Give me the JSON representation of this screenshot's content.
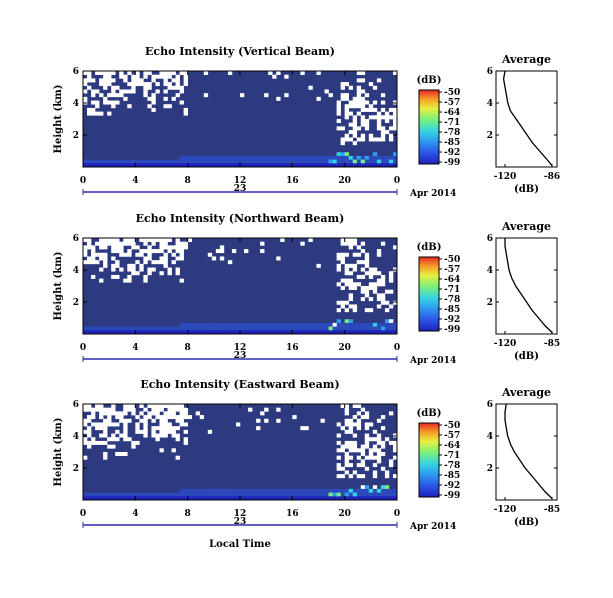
{
  "colors": {
    "background_echo": "#2e3a80",
    "no_data": "#ffffff",
    "colorbar": [
      "#1f22b8",
      "#2c55e8",
      "#2ea0f0",
      "#35d5e0",
      "#7af07a",
      "#e8f040",
      "#f59a25",
      "#e8262a"
    ]
  },
  "shared": {
    "x_ticks": [
      "0",
      "4",
      "8",
      "12",
      "16",
      "20",
      "0"
    ],
    "date_number": "23",
    "date_label": "Apr 2014",
    "ylabel": "Height (km)",
    "y_ticks": [
      "6",
      "4",
      "2"
    ],
    "cbar_unit": "(dB)",
    "cbar_ticks": [
      "-50",
      "-57",
      "-64",
      "-71",
      "-78",
      "-85",
      "-92",
      "-99"
    ],
    "avg_title": "Average",
    "avg_y_ticks": [
      "6",
      "4",
      "2"
    ],
    "avg_xlabel": "(dB)",
    "xlabel": "Local Time"
  },
  "chart_data": [
    {
      "type": "heatmap",
      "title": "Echo Intensity (Vertical Beam)",
      "xlabel": "",
      "ylabel": "Height (km)",
      "xlim": [
        0,
        24
      ],
      "ylim": [
        0,
        6
      ],
      "colorbar_range_db": [
        -99,
        -50
      ],
      "avg_x_ticks": [
        "-120",
        "-86"
      ],
      "average_profile": [
        [
          -86,
          0.1
        ],
        [
          -90,
          0.5
        ],
        [
          -95,
          1.0
        ],
        [
          -100,
          1.5
        ],
        [
          -104,
          2.0
        ],
        [
          -108,
          2.5
        ],
        [
          -112,
          3.0
        ],
        [
          -116,
          3.5
        ],
        [
          -118,
          4.0
        ],
        [
          -119,
          4.5
        ],
        [
          -120,
          5.0
        ],
        [
          -121,
          5.5
        ],
        [
          -120,
          6.0
        ]
      ]
    },
    {
      "type": "heatmap",
      "title": "Echo Intensity (Northward Beam)",
      "xlabel": "",
      "ylabel": "Height (km)",
      "xlim": [
        0,
        24
      ],
      "ylim": [
        0,
        6
      ],
      "colorbar_range_db": [
        -99,
        -50
      ],
      "avg_x_ticks": [
        "-120",
        "-85"
      ],
      "average_profile": [
        [
          -85,
          0.1
        ],
        [
          -90,
          0.5
        ],
        [
          -95,
          1.0
        ],
        [
          -100,
          1.5
        ],
        [
          -104,
          2.0
        ],
        [
          -108,
          2.5
        ],
        [
          -112,
          3.0
        ],
        [
          -115,
          3.5
        ],
        [
          -117,
          4.0
        ],
        [
          -118,
          4.5
        ],
        [
          -119,
          5.0
        ],
        [
          -120,
          5.5
        ],
        [
          -120,
          6.0
        ]
      ]
    },
    {
      "type": "heatmap",
      "title": "Echo Intensity (Eastward Beam)",
      "xlabel": "Local Time",
      "ylabel": "Height (km)",
      "xlim": [
        0,
        24
      ],
      "ylim": [
        0,
        6
      ],
      "colorbar_range_db": [
        -99,
        -50
      ],
      "avg_x_ticks": [
        "-120",
        "-85"
      ],
      "average_profile": [
        [
          -85,
          0.1
        ],
        [
          -90,
          0.5
        ],
        [
          -95,
          1.0
        ],
        [
          -100,
          1.5
        ],
        [
          -105,
          2.0
        ],
        [
          -109,
          2.5
        ],
        [
          -113,
          3.0
        ],
        [
          -116,
          3.5
        ],
        [
          -118,
          4.0
        ],
        [
          -119,
          4.5
        ],
        [
          -120,
          5.0
        ],
        [
          -120,
          5.5
        ],
        [
          -119,
          6.0
        ]
      ]
    }
  ]
}
